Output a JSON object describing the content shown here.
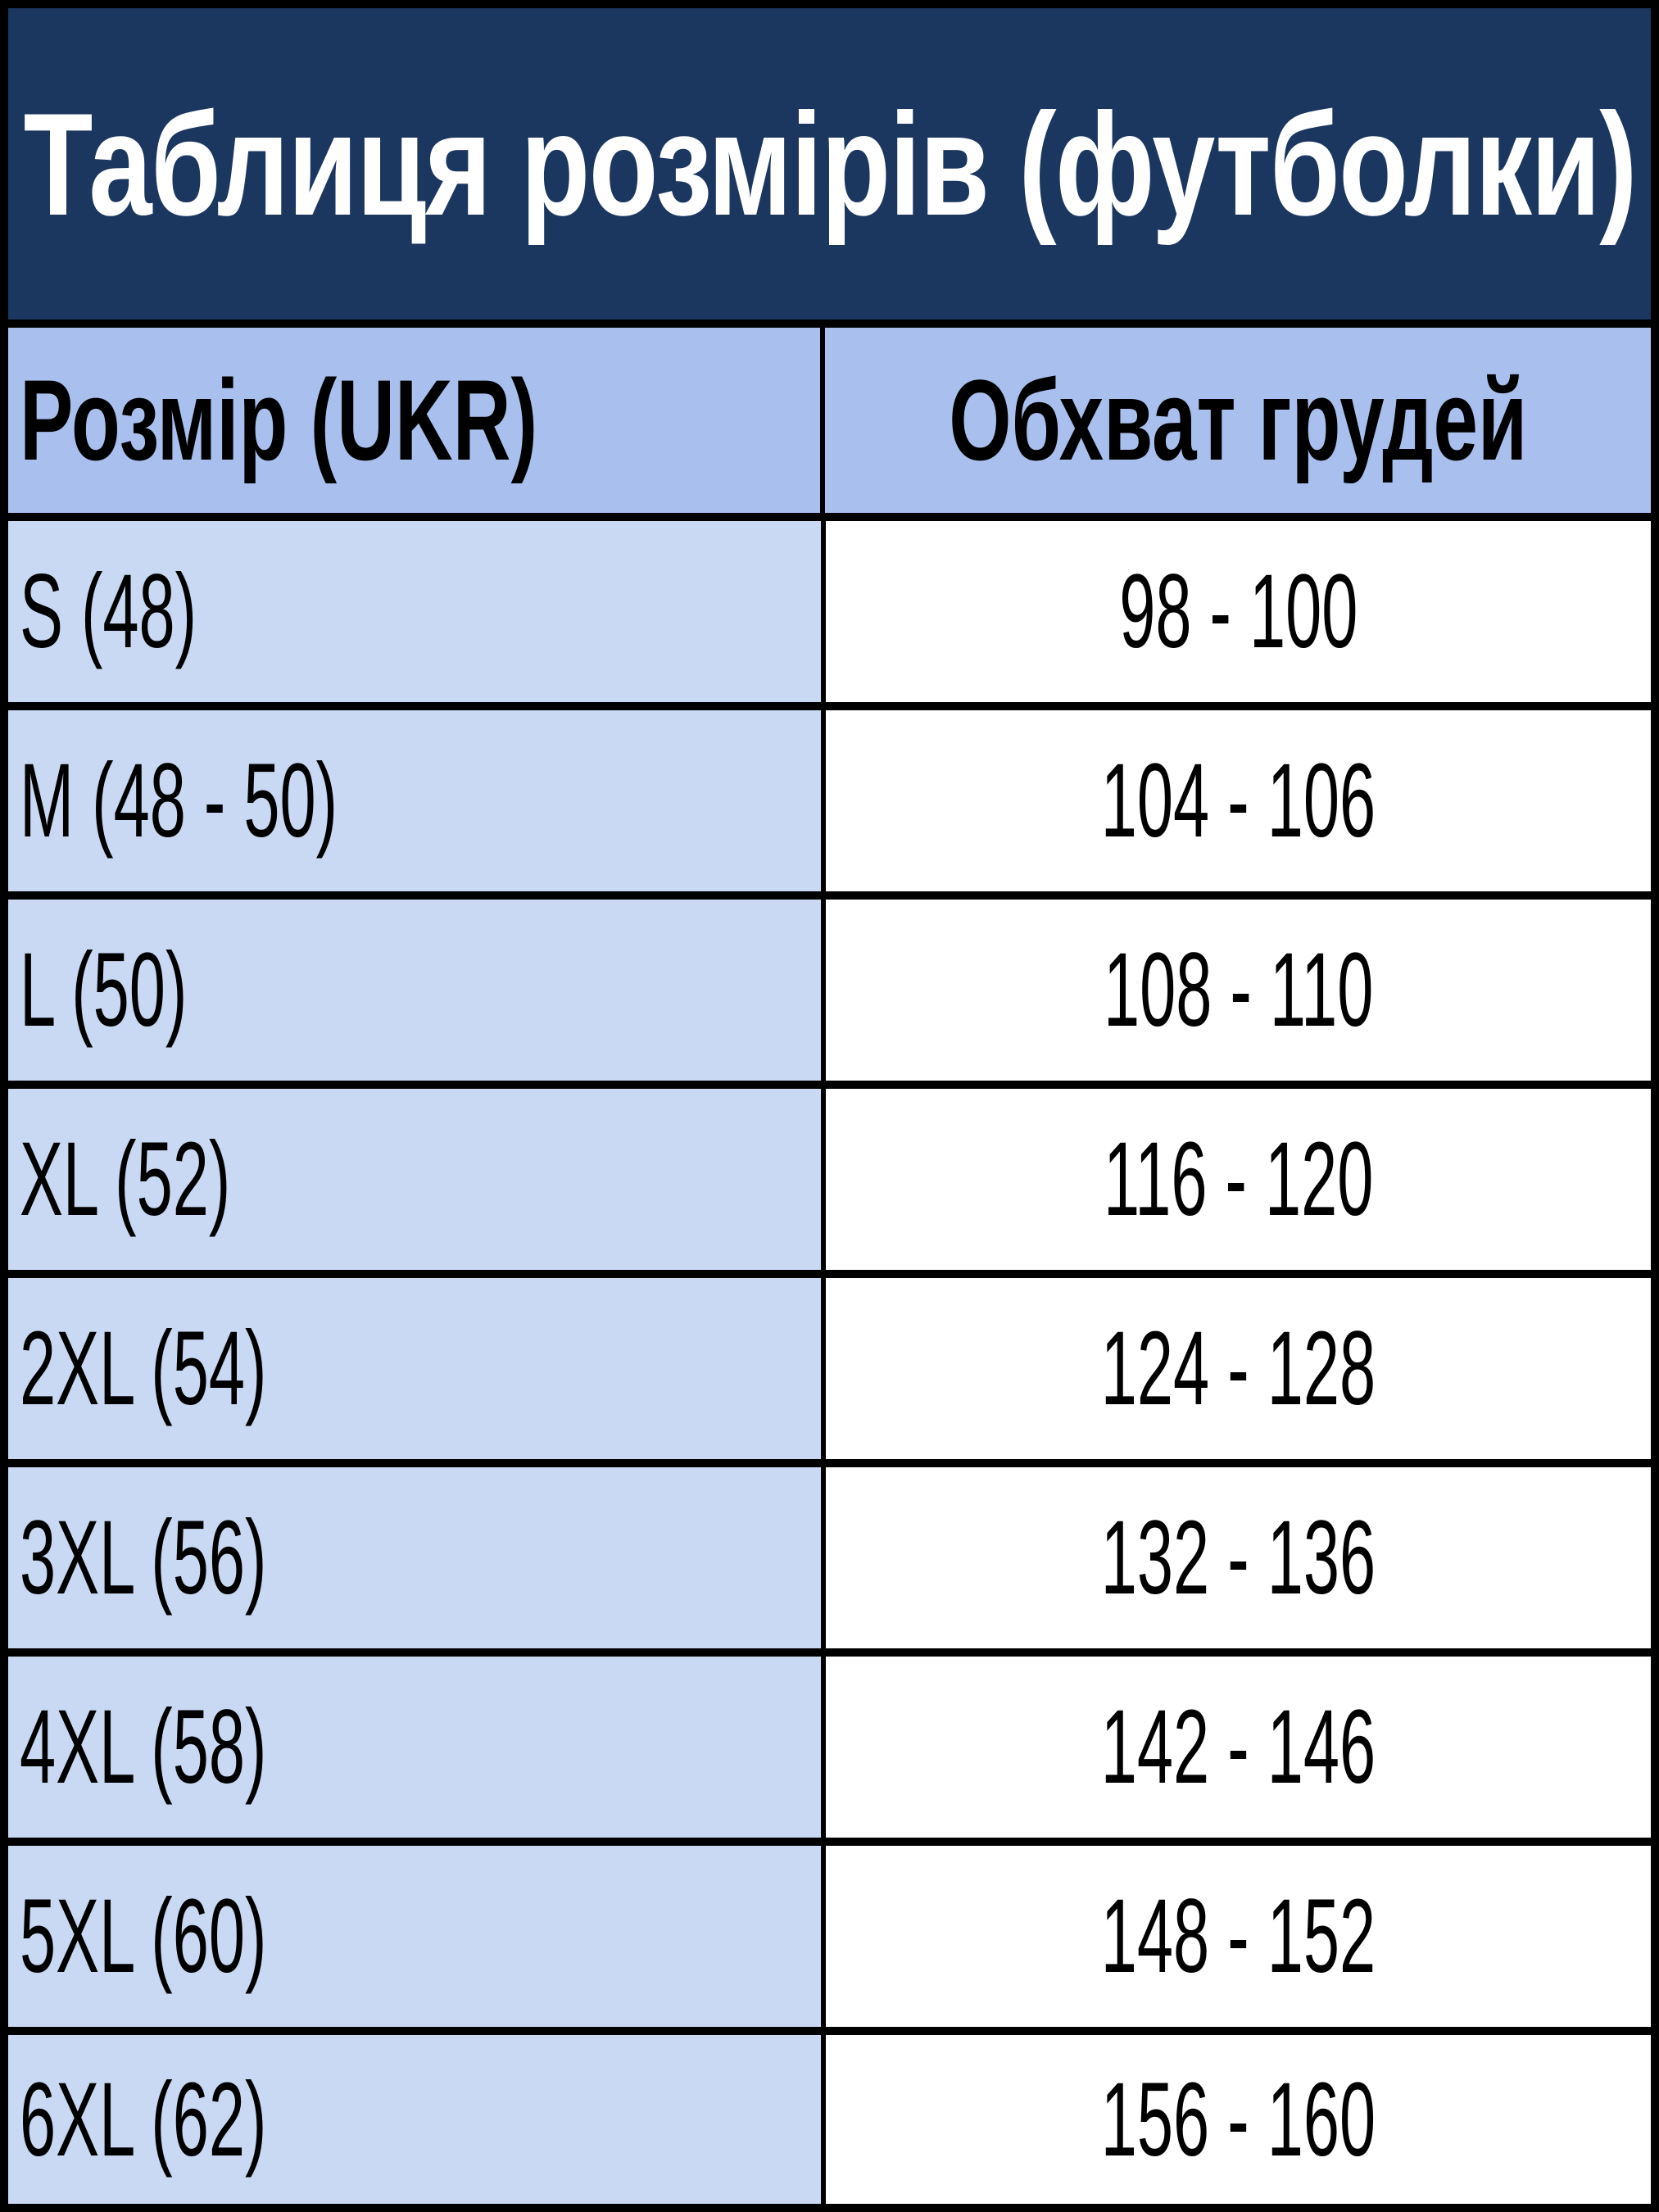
{
  "title": "Таблиця розмірів (футболки)",
  "columns": [
    "Розмір (UKR)",
    "Обхват грудей"
  ],
  "rows": [
    {
      "size": "S (48)",
      "chest": "98 - 100"
    },
    {
      "size": "M (48 - 50)",
      "chest": "104 - 106"
    },
    {
      "size": "L (50)",
      "chest": "108 - 110"
    },
    {
      "size": "XL (52)",
      "chest": "116 - 120"
    },
    {
      "size": "2XL (54)",
      "chest": "124 - 128"
    },
    {
      "size": "3XL (56)",
      "chest": "132 - 136"
    },
    {
      "size": "4XL (58)",
      "chest": "142 - 146"
    },
    {
      "size": "5XL (60)",
      "chest": "148 - 152"
    },
    {
      "size": "6XL (62)",
      "chest": "156 - 160"
    }
  ],
  "colors": {
    "title_bg": "#1b365f",
    "header_bg": "#a9c0ee",
    "size_col_bg": "#c9d8f3",
    "value_col_bg": "#ffffff"
  }
}
